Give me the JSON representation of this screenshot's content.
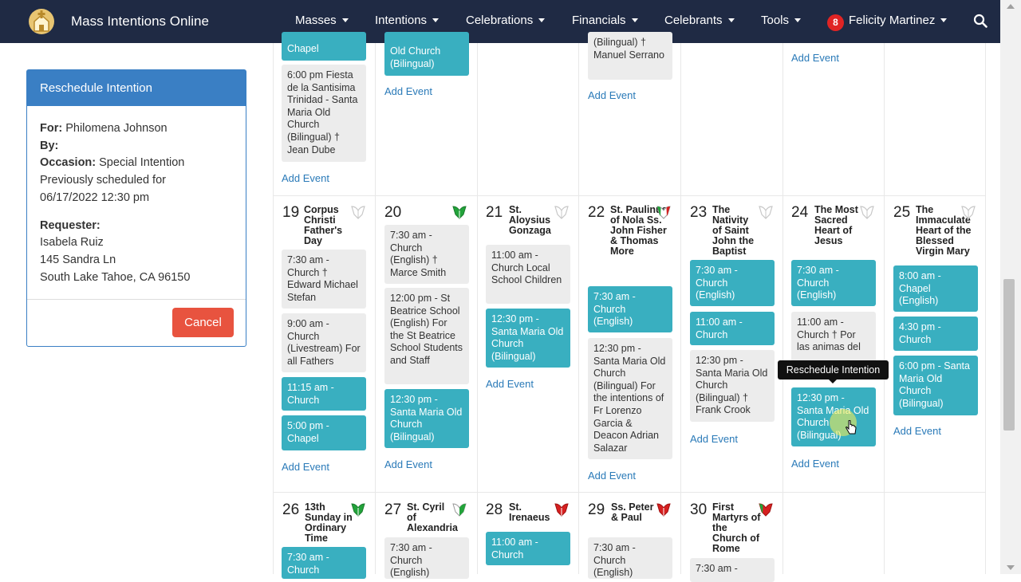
{
  "app": {
    "title": "Mass Intentions Online"
  },
  "nav": {
    "items": [
      "Masses",
      "Intentions",
      "Celebrations",
      "Financials",
      "Celebrants",
      "Tools"
    ],
    "user": {
      "name": "Felicity Martinez",
      "notifications": "8"
    }
  },
  "panel": {
    "title": "Reschedule Intention",
    "for_label": "For:",
    "for_value": "Philomena Johnson",
    "by_label": "By:",
    "occasion_label": "Occasion:",
    "occasion_value": "Special Intention",
    "prev_line1": "Previously scheduled for",
    "prev_line2": "06/17/2022 12:30 pm",
    "requester_label": "Requester:",
    "requester_name": "Isabela Ruiz",
    "requester_addr1": "145 Sandra Ln",
    "requester_addr2": "South Lake Tahoe, CA 96150",
    "cancel": "Cancel"
  },
  "add_event": "Add Event",
  "tooltip": "Reschedule Intention",
  "top_row": {
    "c1_e1": "Chapel",
    "c1_e2": "6:00 pm Fiesta de la Santisima Trinidad - Santa Maria Old Church (Bilingual) † Jean Dube",
    "c2_e1": "Old Church (Bilingual)",
    "c4_e1": "(Bilingual) † Manuel Serrano"
  },
  "week2": [
    {
      "num": "19",
      "title": "Corpus Christi Father's Day",
      "events": [
        {
          "style": "gray",
          "text": "7:30 am - Church † Edward Michael Stefan"
        },
        {
          "style": "gray",
          "text": "9:00 am - Church (Livestream) For all Fathers"
        },
        {
          "style": "teal",
          "text": "11:15 am - Church"
        },
        {
          "style": "teal",
          "text": "5:00 pm - Chapel"
        }
      ]
    },
    {
      "num": "20",
      "title": "",
      "events": [
        {
          "style": "gray",
          "text": "7:30 am - Church (English) † Marce Smith"
        },
        {
          "style": "gray",
          "text": "12:00 pm - St Beatrice School (English) For the St Beatrice School Students and Staff"
        },
        {
          "style": "teal",
          "text": "12:30 pm - Santa Maria Old Church (Bilingual)"
        }
      ]
    },
    {
      "num": "21",
      "title": "St. Aloysius Gonzaga",
      "events": [
        {
          "style": "gray",
          "text": "11:00 am - Church Local School Children"
        },
        {
          "style": "teal",
          "text": "12:30 pm - Santa Maria Old Church (Bilingual)"
        }
      ]
    },
    {
      "num": "22",
      "title": "St. Paulinus of Nola Ss. John Fisher & Thomas More",
      "events": [
        {
          "style": "teal",
          "text": "7:30 am - Church (English)"
        },
        {
          "style": "gray",
          "text": "12:30 pm - Santa Maria Old Church (Bilingual) For the intentions of Fr Lorenzo Garcia & Deacon Adrian Salazar"
        }
      ]
    },
    {
      "num": "23",
      "title": "The Nativity of Saint John the Baptist",
      "events": [
        {
          "style": "teal",
          "text": "7:30 am - Church (English)"
        },
        {
          "style": "teal",
          "text": "11:00 am - Church"
        },
        {
          "style": "gray",
          "text": "12:30 pm - Santa Maria Old Church (Bilingual) † Frank Crook"
        }
      ]
    },
    {
      "num": "24",
      "title": "The Most Sacred Heart of Jesus",
      "events": [
        {
          "style": "teal",
          "text": "7:30 am - Church (English)"
        },
        {
          "style": "gray",
          "text": "11:00 am - Church † Por las animas del"
        },
        {
          "style": "teal",
          "text": "12:30 pm - Santa Maria Old Church (Bilingual)"
        }
      ]
    },
    {
      "num": "25",
      "title": "The Immaculate Heart of the Blessed Virgin Mary",
      "events": [
        {
          "style": "teal",
          "text": "8:00 am - Chapel (English)"
        },
        {
          "style": "teal",
          "text": "4:30 pm - Church"
        },
        {
          "style": "teal",
          "text": "6:00 pm - Santa Maria Old Church (Bilingual)"
        }
      ]
    }
  ],
  "week3": [
    {
      "num": "26",
      "title": "13th Sunday in Ordinary Time",
      "event": "7:30 am - Church"
    },
    {
      "num": "27",
      "title": "St. Cyril of Alexandria",
      "event": "7:30 am - Church (English)"
    },
    {
      "num": "28",
      "title": "St. Irenaeus",
      "event": "11:00 am - Church"
    },
    {
      "num": "29",
      "title": "Ss. Peter & Paul",
      "event": "7:30 am - Church (English)"
    },
    {
      "num": "30",
      "title": "First Martyrs of the Church of Rome",
      "event": "7:30 am -"
    }
  ],
  "colors": {
    "navbar": "#1f2a44",
    "panel": "#3a7fc4",
    "teal": "#39afc0",
    "cancel": "#e8533f",
    "link": "#2a7ab8"
  }
}
